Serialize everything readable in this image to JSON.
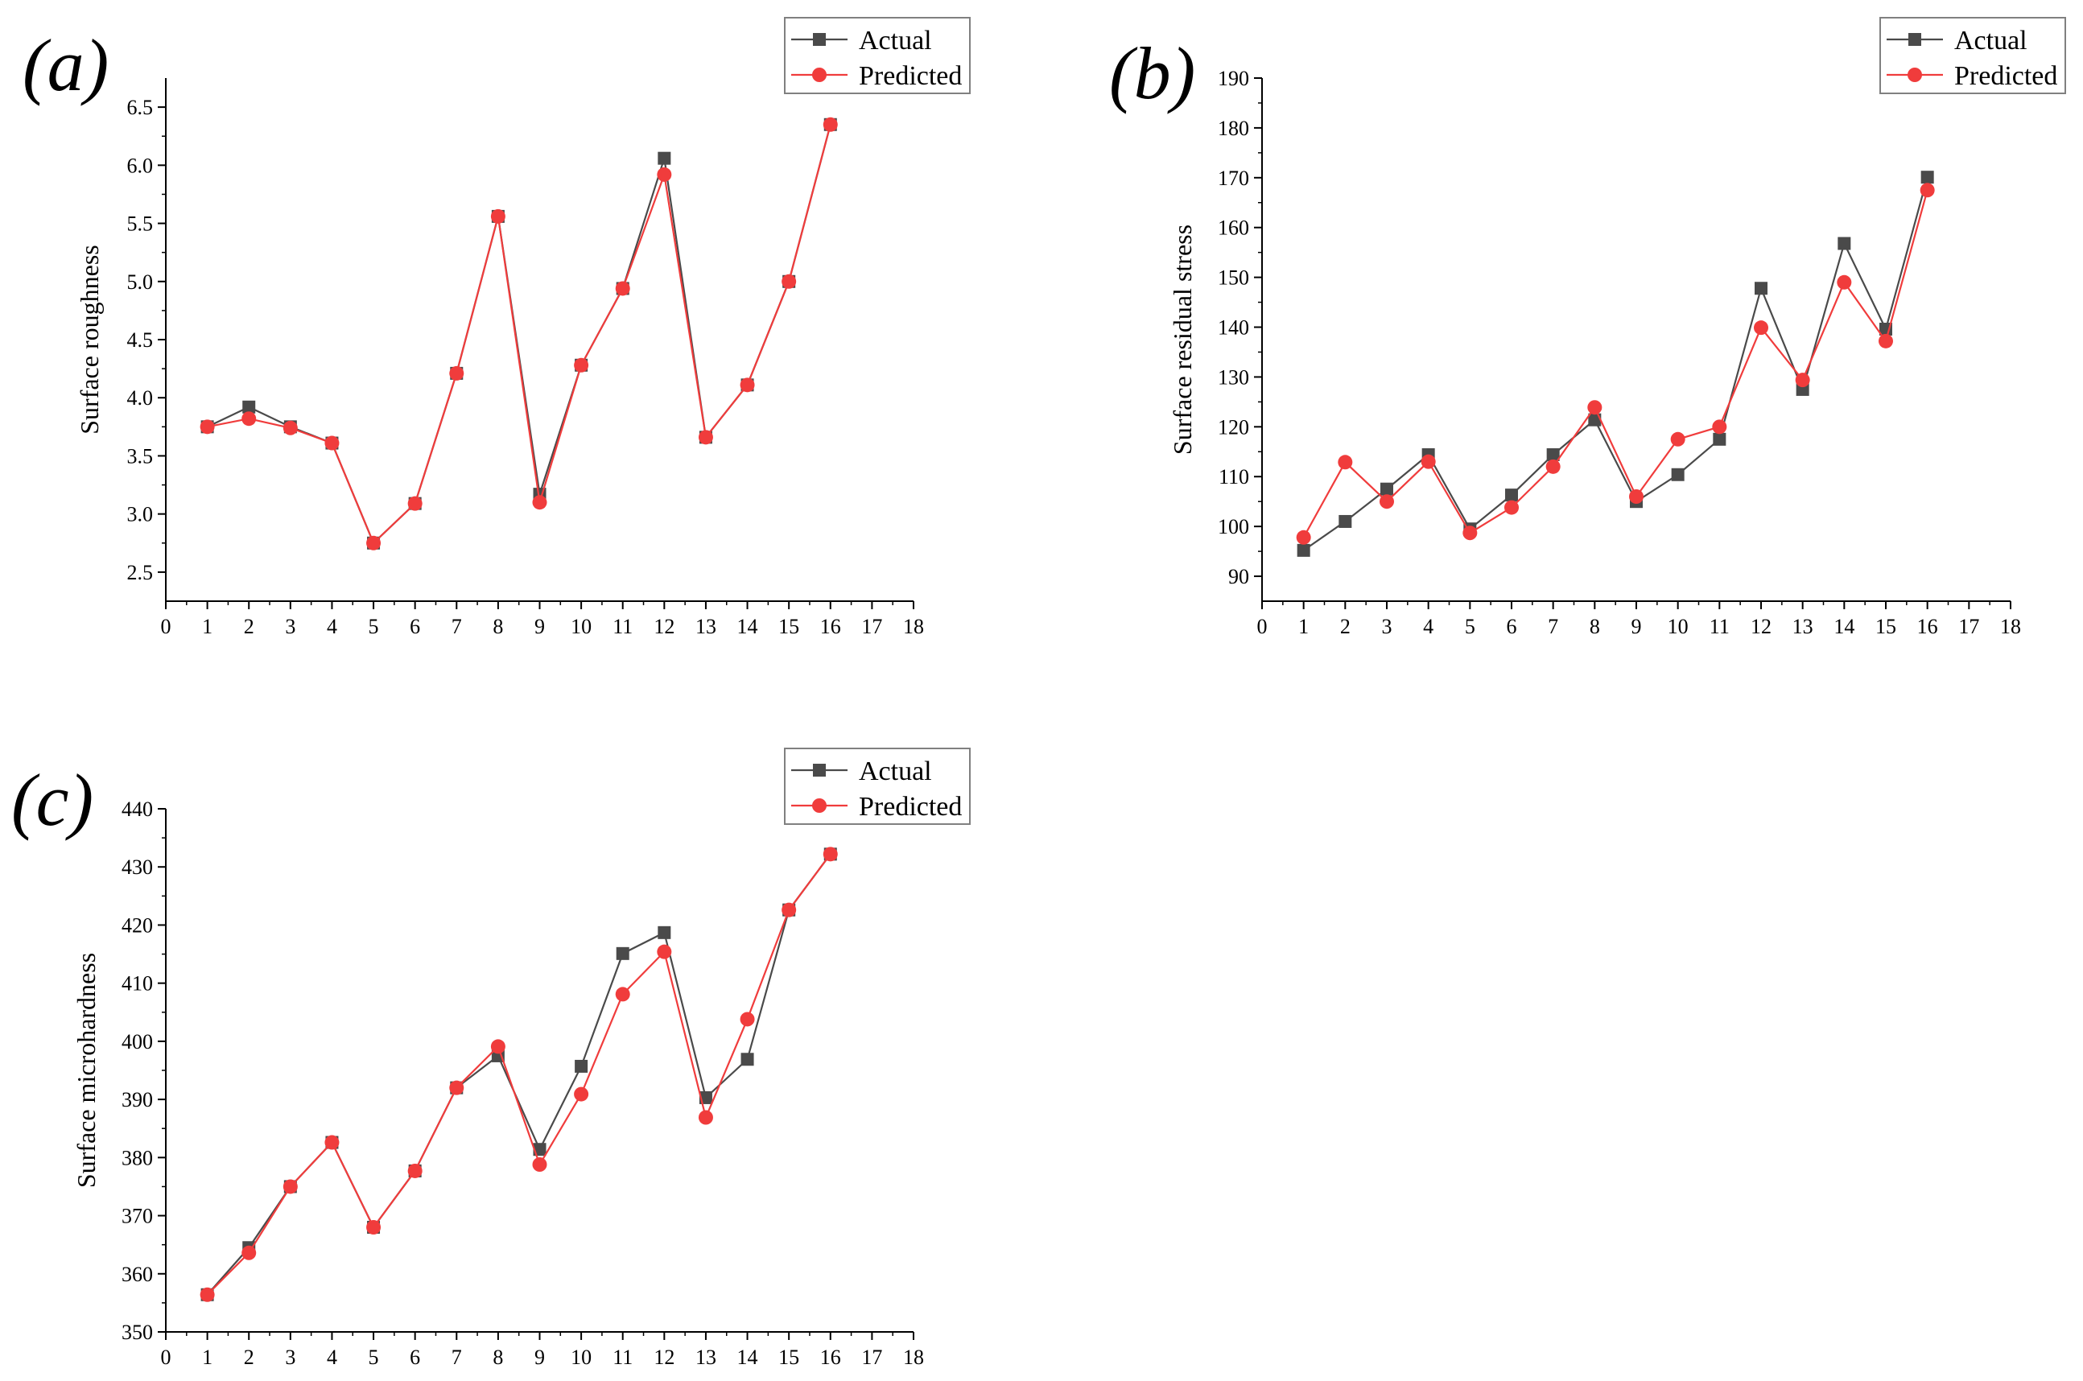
{
  "colors": {
    "actual": "#4a4a4a",
    "predicted": "#f03c3c",
    "axis": "#000000",
    "legend_border": "#808080"
  },
  "chart_data": [
    {
      "type": "line",
      "panel_label": "(a)",
      "title": "",
      "xlabel": "",
      "ylabel": "Surface roughness",
      "xlim": [
        0,
        18
      ],
      "ylim": [
        2.25,
        6.75
      ],
      "x_ticks": [
        "0",
        "1",
        "2",
        "3",
        "4",
        "5",
        "6",
        "7",
        "8",
        "9",
        "10",
        "11",
        "12",
        "13",
        "14",
        "15",
        "16",
        "17",
        "18"
      ],
      "y_ticks": [
        "2.5",
        "3.0",
        "3.5",
        "4.0",
        "4.5",
        "5.0",
        "5.5",
        "6.0",
        "6.5"
      ],
      "legend": {
        "position": "top-right",
        "entries": [
          "Actual",
          "Predicted"
        ]
      },
      "x": [
        1,
        2,
        3,
        4,
        5,
        6,
        7,
        8,
        9,
        10,
        11,
        12,
        13,
        14,
        15,
        16
      ],
      "series": [
        {
          "name": "Actual",
          "marker": "square",
          "values": [
            3.75,
            3.92,
            3.75,
            3.61,
            2.75,
            3.09,
            4.21,
            5.56,
            3.17,
            4.28,
            4.94,
            6.06,
            3.66,
            4.11,
            5.0,
            6.35
          ]
        },
        {
          "name": "Predicted",
          "marker": "circle",
          "values": [
            3.75,
            3.82,
            3.74,
            3.61,
            2.75,
            3.09,
            4.21,
            5.56,
            3.1,
            4.28,
            4.94,
            5.92,
            3.66,
            4.11,
            5.0,
            6.35
          ]
        }
      ]
    },
    {
      "type": "line",
      "panel_label": "(b)",
      "title": "",
      "xlabel": "",
      "ylabel": "Surface residual stress",
      "xlim": [
        0,
        18
      ],
      "ylim": [
        85,
        190
      ],
      "x_ticks": [
        "0",
        "1",
        "2",
        "3",
        "4",
        "5",
        "6",
        "7",
        "8",
        "9",
        "10",
        "11",
        "12",
        "13",
        "14",
        "15",
        "16",
        "17",
        "18"
      ],
      "y_ticks": [
        "90",
        "100",
        "110",
        "120",
        "130",
        "140",
        "150",
        "160",
        "170",
        "180",
        "190"
      ],
      "legend": {
        "position": "top-right",
        "entries": [
          "Actual",
          "Predicted"
        ]
      },
      "x": [
        1,
        2,
        3,
        4,
        5,
        6,
        7,
        8,
        9,
        10,
        11,
        12,
        13,
        14,
        15,
        16
      ],
      "series": [
        {
          "name": "Actual",
          "marker": "square",
          "values": [
            95.2,
            101.0,
            107.5,
            114.4,
            99.5,
            106.3,
            114.4,
            121.4,
            105.0,
            110.4,
            117.5,
            147.8,
            127.5,
            156.8,
            139.6,
            170.1
          ]
        },
        {
          "name": "Predicted",
          "marker": "circle",
          "values": [
            97.8,
            112.9,
            105.0,
            113.0,
            98.7,
            103.8,
            112.0,
            123.9,
            106.0,
            117.5,
            120.0,
            139.9,
            129.4,
            149.0,
            137.2,
            167.5
          ]
        }
      ]
    },
    {
      "type": "line",
      "panel_label": "(c)",
      "title": "",
      "xlabel": "",
      "ylabel": "Surface microhardness",
      "xlim": [
        0,
        18
      ],
      "ylim": [
        350,
        440
      ],
      "x_ticks": [
        "0",
        "1",
        "2",
        "3",
        "4",
        "5",
        "6",
        "7",
        "8",
        "9",
        "10",
        "11",
        "12",
        "13",
        "14",
        "15",
        "16",
        "17",
        "18"
      ],
      "y_ticks": [
        "350",
        "360",
        "370",
        "380",
        "390",
        "400",
        "410",
        "420",
        "430",
        "440"
      ],
      "legend": {
        "position": "top-right",
        "entries": [
          "Actual",
          "Predicted"
        ]
      },
      "x": [
        1,
        2,
        3,
        4,
        5,
        6,
        7,
        8,
        9,
        10,
        11,
        12,
        13,
        14,
        15,
        16
      ],
      "series": [
        {
          "name": "Actual",
          "marker": "square",
          "values": [
            356.4,
            364.5,
            375.0,
            382.6,
            368.0,
            377.7,
            392.0,
            397.5,
            381.4,
            395.7,
            415.1,
            418.7,
            390.3,
            396.9,
            422.6,
            432.2
          ]
        },
        {
          "name": "Predicted",
          "marker": "circle",
          "values": [
            356.4,
            363.6,
            375.0,
            382.6,
            368.0,
            377.7,
            392.0,
            399.1,
            378.8,
            390.9,
            408.1,
            415.4,
            386.9,
            403.8,
            422.6,
            432.2
          ]
        }
      ]
    }
  ]
}
